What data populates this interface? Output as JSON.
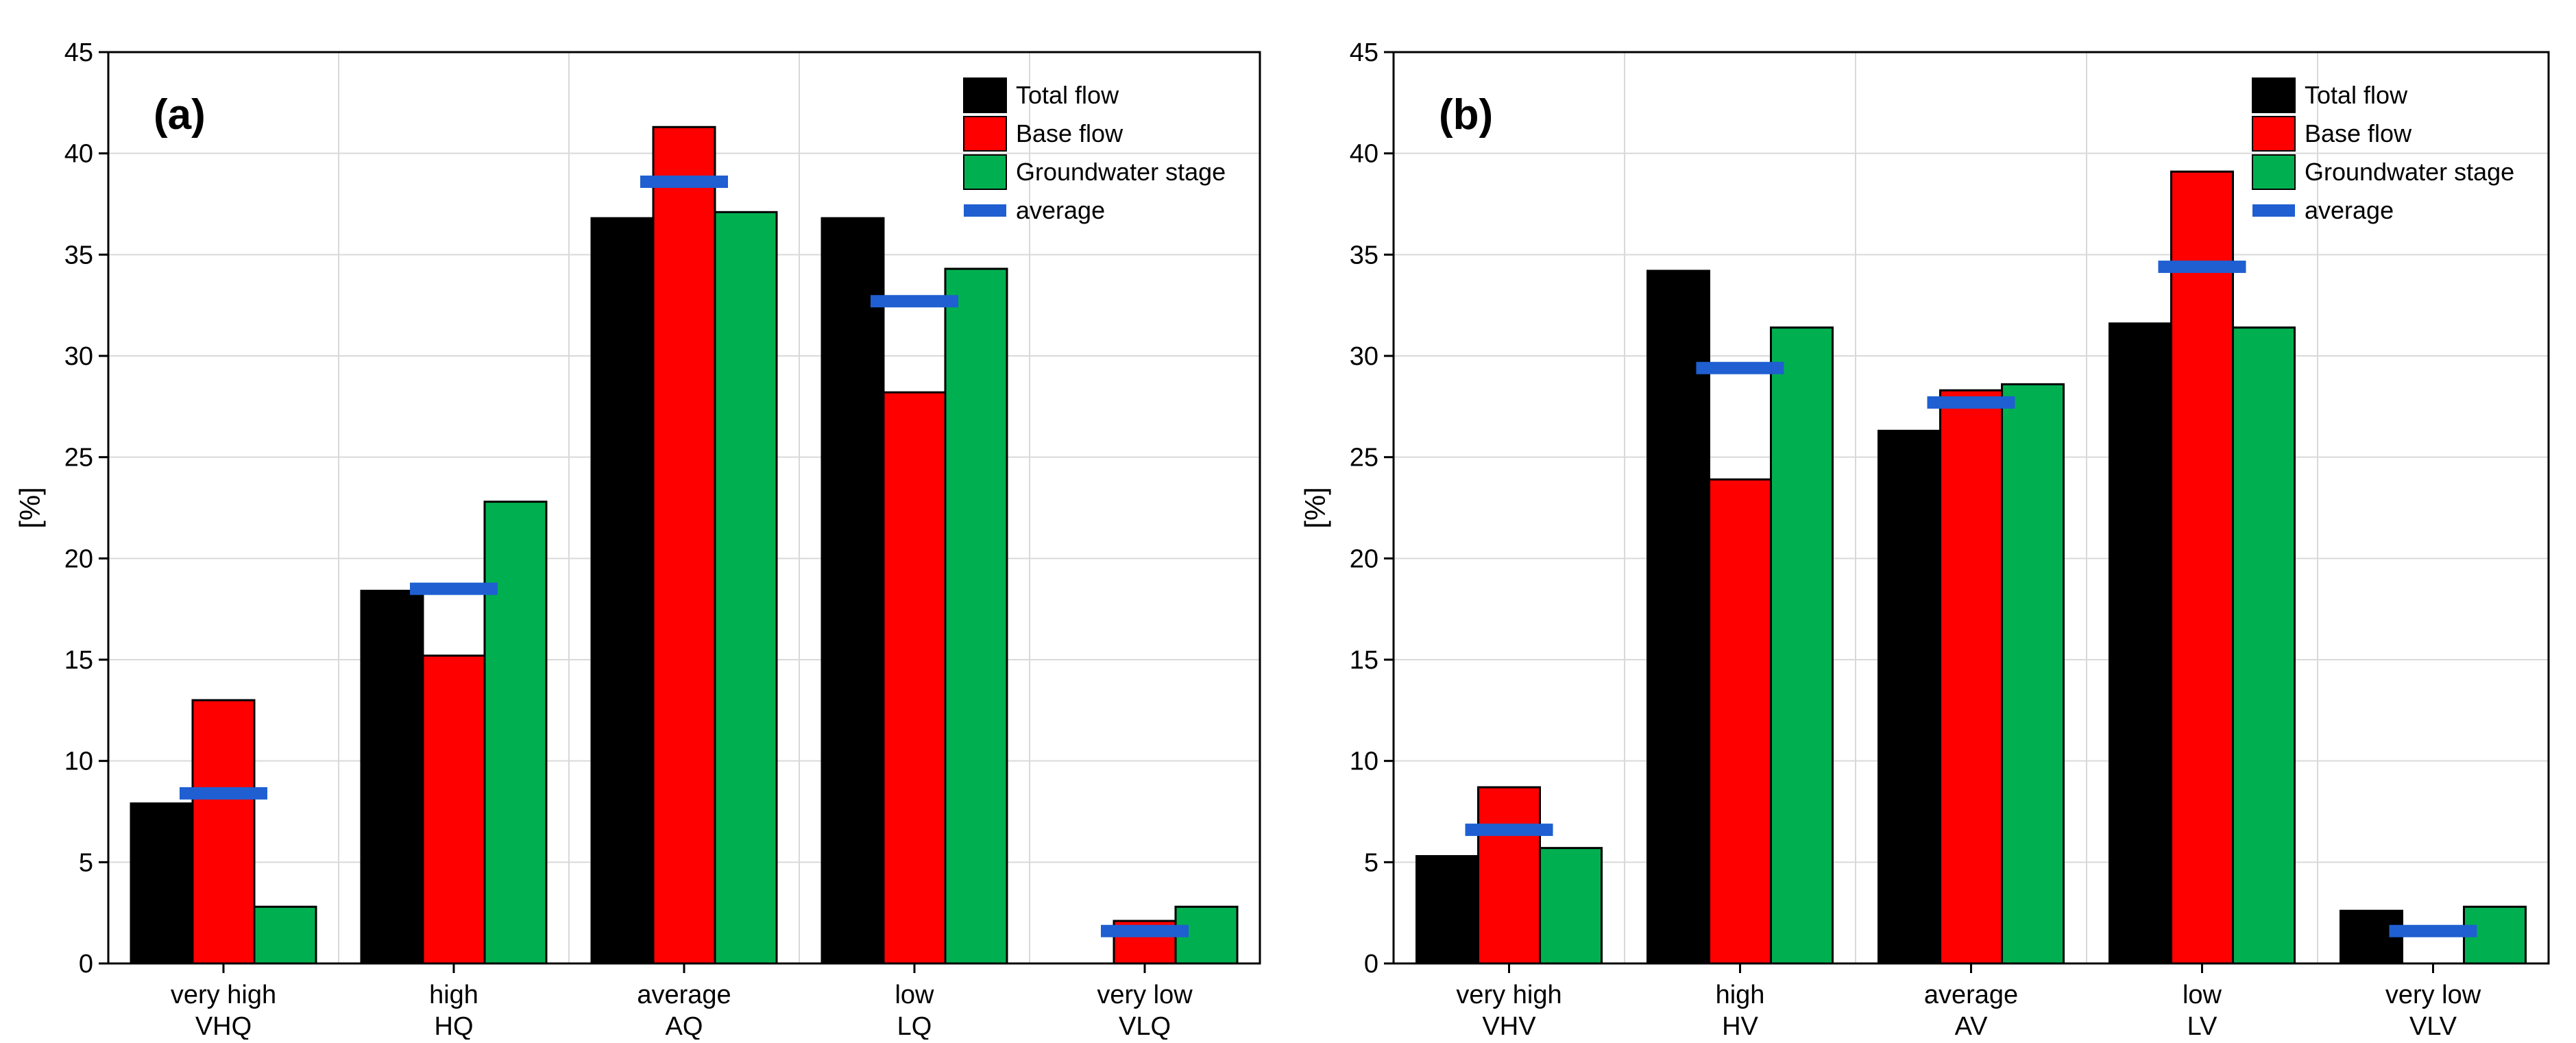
{
  "colors": {
    "total_flow": "#000000",
    "base_flow": "#ff0000",
    "groundwater_stage": "#00b050",
    "average": "#1f5fd1",
    "grid": "#d9d9d9"
  },
  "chart_data": [
    {
      "type": "bar",
      "panel_label": "(a)",
      "ylabel": "[%]",
      "ylim": [
        0,
        45
      ],
      "yticks": [
        "0",
        "5",
        "10",
        "15",
        "20",
        "25",
        "30",
        "35",
        "40",
        "45"
      ],
      "categories": [
        {
          "line1": "very high",
          "line2": "VHQ"
        },
        {
          "line1": "high",
          "line2": "HQ"
        },
        {
          "line1": "average",
          "line2": "AQ"
        },
        {
          "line1": "low",
          "line2": "LQ"
        },
        {
          "line1": "very low",
          "line2": "VLQ"
        }
      ],
      "series": [
        {
          "name": "Total flow",
          "values": [
            7.9,
            18.4,
            36.8,
            36.8,
            0
          ]
        },
        {
          "name": "Base flow",
          "values": [
            13.0,
            15.2,
            41.3,
            28.2,
            2.1
          ]
        },
        {
          "name": "Groundwater stage",
          "values": [
            2.8,
            22.8,
            37.1,
            34.3,
            2.8
          ]
        }
      ],
      "average": {
        "name": "average",
        "values": [
          8.4,
          18.5,
          38.6,
          32.7,
          1.6
        ]
      },
      "legend": [
        "Total flow",
        "Base flow",
        "Groundwater stage",
        "average"
      ],
      "legend_position": "top-right",
      "grid": true
    },
    {
      "type": "bar",
      "panel_label": "(b)",
      "ylabel": "[%]",
      "ylim": [
        0,
        45
      ],
      "yticks": [
        "0",
        "5",
        "10",
        "15",
        "20",
        "25",
        "30",
        "35",
        "40",
        "45"
      ],
      "categories": [
        {
          "line1": "very high",
          "line2": "VHV"
        },
        {
          "line1": "high",
          "line2": "HV"
        },
        {
          "line1": "average",
          "line2": "AV"
        },
        {
          "line1": "low",
          "line2": "LV"
        },
        {
          "line1": "very low",
          "line2": "VLV"
        }
      ],
      "series": [
        {
          "name": "Total flow",
          "values": [
            5.3,
            34.2,
            26.3,
            31.6,
            2.6
          ]
        },
        {
          "name": "Base flow",
          "values": [
            8.7,
            23.9,
            28.3,
            39.1,
            0
          ]
        },
        {
          "name": "Groundwater stage",
          "values": [
            5.7,
            31.4,
            28.6,
            31.4,
            2.8
          ]
        }
      ],
      "average": {
        "name": "average",
        "values": [
          6.6,
          29.4,
          27.7,
          34.4,
          1.6
        ]
      },
      "legend": [
        "Total flow",
        "Base flow",
        "Groundwater stage",
        "average"
      ],
      "legend_position": "top-right",
      "grid": true
    }
  ]
}
